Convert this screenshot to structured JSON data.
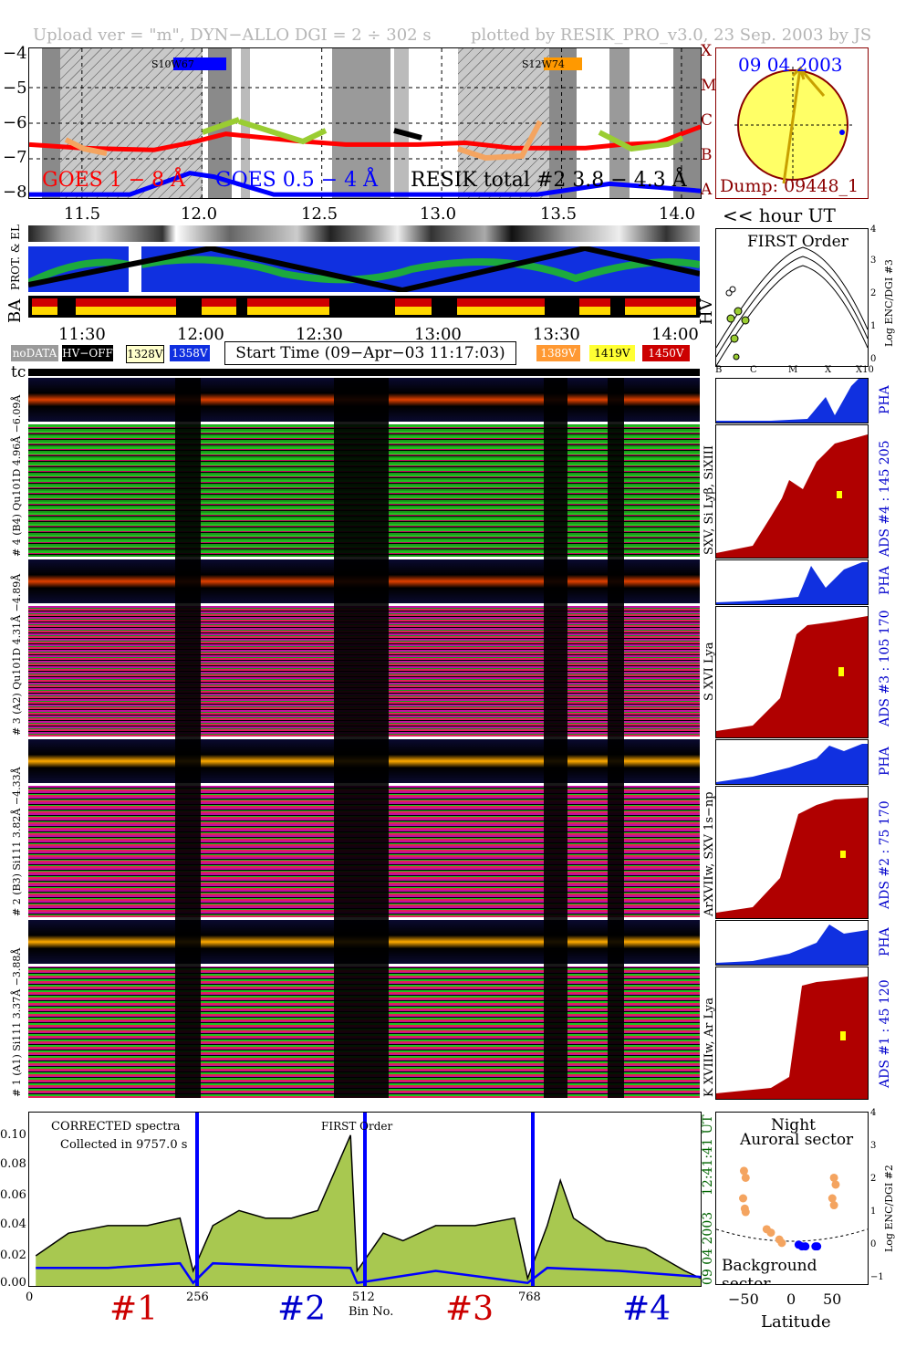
{
  "header": {
    "left": "Upload ver = \"m\", DYN−ALLO DGI =   2 ÷ 302 s",
    "right": "plotted by RESIK_PRO_v3.0, 23 Sep. 2003 by JS"
  },
  "goes_panel": {
    "ticks_y": [
      "−4",
      "−5",
      "−6",
      "−7",
      "−8"
    ],
    "ticks_x": [
      "11.5",
      "12.0",
      "12.5",
      "13.0",
      "13.5",
      "14.0"
    ],
    "flare_classes": [
      "X",
      "M",
      "C",
      "B",
      "A"
    ],
    "legend_goes_long": "GOES 1 − 8 Å",
    "legend_goes_short": "GOES 0.5 − 4 Å",
    "legend_resik": "RESIK total #2  3.8 − 4.3 Å",
    "region_a": "S10W67",
    "region_b": "S12W74",
    "hour_label": "<< hour UT"
  },
  "sun_panel": {
    "date": "09 04 2003",
    "dump": "Dump: 09448_1"
  },
  "orbit_panel": {
    "label_prot": "PROT. & EL",
    "label_ba": "BA",
    "label_hv": "HV",
    "time_ticks": [
      "11:30",
      "12:00",
      "12:30",
      "13:00",
      "13:30",
      "14:00"
    ]
  },
  "legend": {
    "nodata": "noDATA",
    "hvoff": "HV−OFF",
    "v328": "1328V",
    "v358": "1358V",
    "start_time": "Start Time (09−Apr−03 11:17:03)",
    "v389": "1389V",
    "v419": "1419V",
    "v450": "1450V",
    "tc": "tc"
  },
  "first_order": {
    "title": "FIRST Order",
    "ylabel": "Log ENC/DGI #3",
    "yticks": [
      "4",
      "3",
      "2",
      "1",
      "0"
    ],
    "xticks": [
      "B",
      "C",
      "M",
      "X",
      "X10"
    ]
  },
  "channels": [
    {
      "pha_range": "6.09Å",
      "range": "# 4 (B4) Qu101D  4.96Å −",
      "pha": "PHA",
      "ads": "ADS #4 :   145 205",
      "lines": "SXV, Si Lyβ, SiXIII"
    },
    {
      "pha_range": "4.89Å",
      "range": "# 3 (A2) Qu101D  4.31Å −",
      "pha": "PHA",
      "ads": "ADS #3 :   105 170",
      "lines": "S XVI Lya"
    },
    {
      "pha_range": "4.33Å",
      "range": "# 2 (B3) Si111  3.82Å −",
      "pha": "PHA",
      "ads": "ADS #2 :   75 170",
      "lines": "ArXVIIw, SXV 1s−np"
    },
    {
      "pha_range": "3.88Å",
      "range": "# 1 (A1) Si111  3.37Å −",
      "pha": "PHA",
      "ads": "ADS #1 :   45 120",
      "lines": "K XVIIIw, Ar Lya"
    }
  ],
  "spectrum": {
    "corrected": "CORRECTED spectra",
    "collected": "Collected in  9757.0 s",
    "first_order": "FIRST Order",
    "yticks": [
      "0.10",
      "0.08",
      "0.06",
      "0.04",
      "0.02",
      "0.00"
    ],
    "xticks": [
      "0",
      "256",
      "512",
      "768"
    ],
    "xlabel": "Bin No.",
    "side_time": "09 04 2003",
    "side_ut": "12:41:41 UT",
    "channel_labels": [
      "#1",
      "#2",
      "#3",
      "#4"
    ]
  },
  "latitude_panel": {
    "title_line1": "Night",
    "title_line2": "Auroral sector",
    "bottom": "Background sector",
    "ylabel": "Log ENC/DGI #2",
    "xlabel": "Latitude",
    "xticks": [
      "−50",
      "0",
      "50"
    ],
    "yticks": [
      "4",
      "3",
      "2",
      "1",
      "0",
      "−1"
    ]
  },
  "chart_data": [
    {
      "type": "line",
      "title": "",
      "xlabel": "hour UT",
      "ylabel": "",
      "xlim": [
        11.28,
        14.08
      ],
      "ylim": [
        -8.1,
        -3.9
      ],
      "series": [
        {
          "name": "GOES 1 − 8 Å",
          "color": "#ff0000",
          "x": [
            11.28,
            11.5,
            11.8,
            11.95,
            12.1,
            12.4,
            12.6,
            12.9,
            13.1,
            13.3,
            13.6,
            13.75,
            13.9,
            14.08
          ],
          "y": [
            -6.6,
            -6.7,
            -6.75,
            -6.55,
            -6.3,
            -6.5,
            -6.6,
            -6.6,
            -6.55,
            -6.7,
            -6.7,
            -6.6,
            -6.55,
            -6.1
          ]
        },
        {
          "name": "GOES 0.5 − 4 Å",
          "color": "#0000ff",
          "x": [
            11.28,
            11.7,
            11.95,
            12.05,
            12.3,
            12.6,
            13.0,
            13.4,
            13.7,
            13.9,
            14.08
          ],
          "y": [
            -8.0,
            -8.0,
            -7.4,
            -7.5,
            -8.0,
            -8.0,
            -8.0,
            -8.0,
            -7.7,
            -7.8,
            -7.9
          ]
        }
      ]
    },
    {
      "type": "line",
      "title": "",
      "xlabel": "Bin No.",
      "ylabel": "",
      "xlim": [
        0,
        1024
      ],
      "ylim": [
        0,
        0.115
      ],
      "series": [
        {
          "name": "",
          "color": "#000000",
          "x": [
            10,
            60,
            120,
            180,
            230,
            250,
            280,
            320,
            360,
            400,
            440,
            490,
            500,
            540,
            570,
            620,
            680,
            740,
            760,
            790,
            810,
            830,
            880,
            940,
            1000,
            1024
          ],
          "y": [
            0.02,
            0.035,
            0.04,
            0.04,
            0.045,
            0.01,
            0.04,
            0.05,
            0.045,
            0.045,
            0.05,
            0.1,
            0.01,
            0.035,
            0.03,
            0.04,
            0.04,
            0.045,
            0.005,
            0.04,
            0.07,
            0.045,
            0.03,
            0.025,
            0.01,
            0.005
          ]
        },
        {
          "name": "",
          "color": "#0000ff",
          "x": [
            10,
            120,
            230,
            250,
            280,
            400,
            490,
            500,
            620,
            760,
            790,
            900,
            1024
          ],
          "y": [
            0.012,
            0.012,
            0.015,
            0.002,
            0.015,
            0.013,
            0.012,
            0.002,
            0.01,
            0.002,
            0.012,
            0.01,
            0.006
          ]
        }
      ]
    },
    {
      "type": "scatter",
      "title": "",
      "xlabel": "Latitude",
      "ylabel": "Log ENC/DGI #2",
      "xlim": [
        -90,
        90
      ],
      "ylim": [
        -1,
        4
      ],
      "series": [
        {
          "name": "",
          "color": "#f4a460",
          "x": [
            -57,
            -55,
            -58,
            -56,
            -55,
            -30,
            -25,
            -15,
            -12,
            50,
            52,
            48,
            50
          ],
          "y": [
            2.3,
            2.1,
            1.5,
            1.2,
            1.1,
            0.6,
            0.5,
            0.3,
            0.2,
            2.1,
            1.9,
            1.5,
            1.3
          ]
        },
        {
          "name": "",
          "color": "#0000ff",
          "x": [
            8,
            12,
            16,
            28,
            30
          ],
          "y": [
            0.15,
            0.1,
            0.1,
            0.1,
            0.1
          ]
        }
      ]
    }
  ]
}
